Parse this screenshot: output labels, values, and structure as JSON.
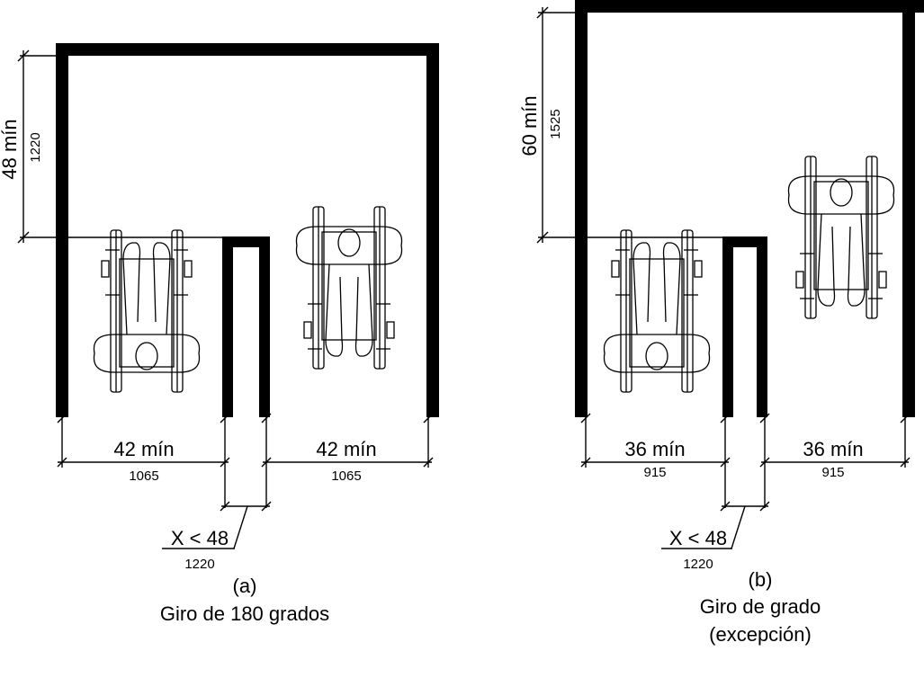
{
  "figure_a": {
    "height_imperial": "48 mín",
    "height_metric": "1220",
    "left_width_imperial": "42 mín",
    "left_width_metric": "1065",
    "right_width_imperial": "42 mín",
    "right_width_metric": "1065",
    "x_imperial": "X < 48",
    "x_metric": "1220",
    "letter": "(a)",
    "caption_line1": "Giro de 180 grados"
  },
  "figure_b": {
    "height_imperial": "60 mín",
    "height_metric": "1525",
    "left_width_imperial": "36 mín",
    "left_width_metric": "915",
    "right_width_imperial": "36 mín",
    "right_width_metric": "915",
    "x_imperial": "X < 48",
    "x_metric": "1220",
    "letter": "(b)",
    "caption_line1": "Giro de grado",
    "caption_line2": "(excepción)"
  }
}
